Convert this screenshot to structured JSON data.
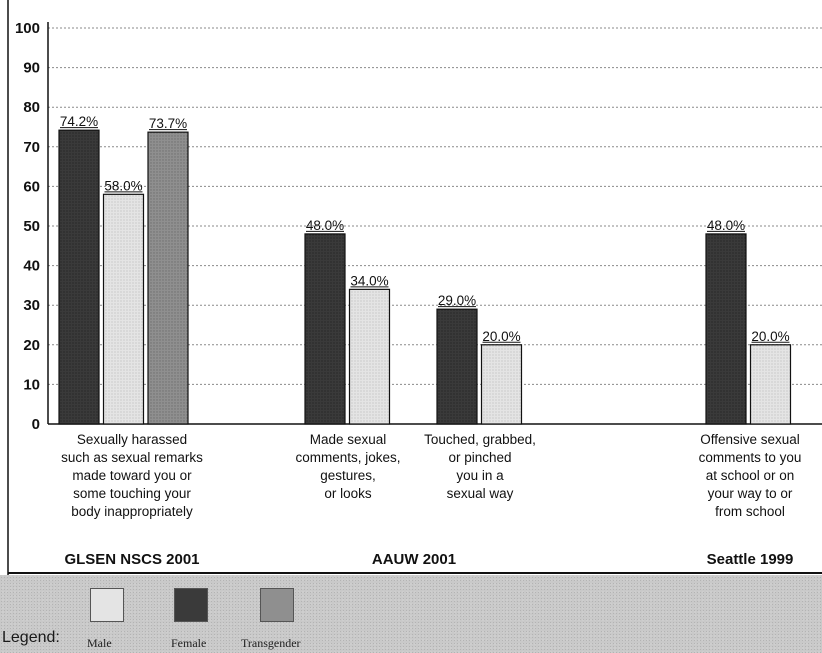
{
  "chart_data": {
    "type": "bar",
    "ylim": [
      0,
      100
    ],
    "yticks": [
      0,
      10,
      20,
      30,
      40,
      50,
      60,
      70,
      80,
      90,
      100
    ],
    "grid": true,
    "series_colors": {
      "Male": "#e4e4e4",
      "Female": "#3a3a3a",
      "Transgender": "#8f8f8f"
    },
    "groups": [
      {
        "source": "GLSEN NSCS 2001",
        "categories": [
          {
            "label": [
              "Sexually harassed",
              "such as sexual remarks",
              "made toward you or",
              "some touching your",
              "body inappropriately"
            ],
            "bars": [
              {
                "series": "Female",
                "value": 74.2,
                "label": "74.2%"
              },
              {
                "series": "Male",
                "value": 58.0,
                "label": "58.0%"
              },
              {
                "series": "Transgender",
                "value": 73.7,
                "label": "73.7%"
              }
            ]
          }
        ]
      },
      {
        "source": "AAUW 2001",
        "categories": [
          {
            "label": [
              "Made sexual",
              "comments, jokes,",
              "gestures,",
              "or looks"
            ],
            "bars": [
              {
                "series": "Female",
                "value": 48.0,
                "label": "48.0%"
              },
              {
                "series": "Male",
                "value": 34.0,
                "label": "34.0%"
              }
            ]
          },
          {
            "label": [
              "Touched, grabbed,",
              "or pinched",
              "you in a",
              "sexual way"
            ],
            "bars": [
              {
                "series": "Female",
                "value": 29.0,
                "label": "29.0%"
              },
              {
                "series": "Male",
                "value": 20.0,
                "label": "20.0%"
              }
            ]
          }
        ]
      },
      {
        "source": "Seattle 1999",
        "categories": [
          {
            "label": [
              "Offensive sexual",
              "comments to you",
              "at school or on",
              "your way to or",
              "from school"
            ],
            "bars": [
              {
                "series": "Female",
                "value": 48.0,
                "label": "48.0%"
              },
              {
                "series": "Male",
                "value": 20.0,
                "label": "20.0%"
              }
            ]
          }
        ]
      }
    ]
  },
  "legend": {
    "title": "Legend:",
    "items": [
      {
        "label": "Male",
        "color": "#e4e4e4"
      },
      {
        "label": "Female",
        "color": "#3a3a3a"
      },
      {
        "label": "Transgender",
        "color": "#8f8f8f"
      }
    ]
  }
}
